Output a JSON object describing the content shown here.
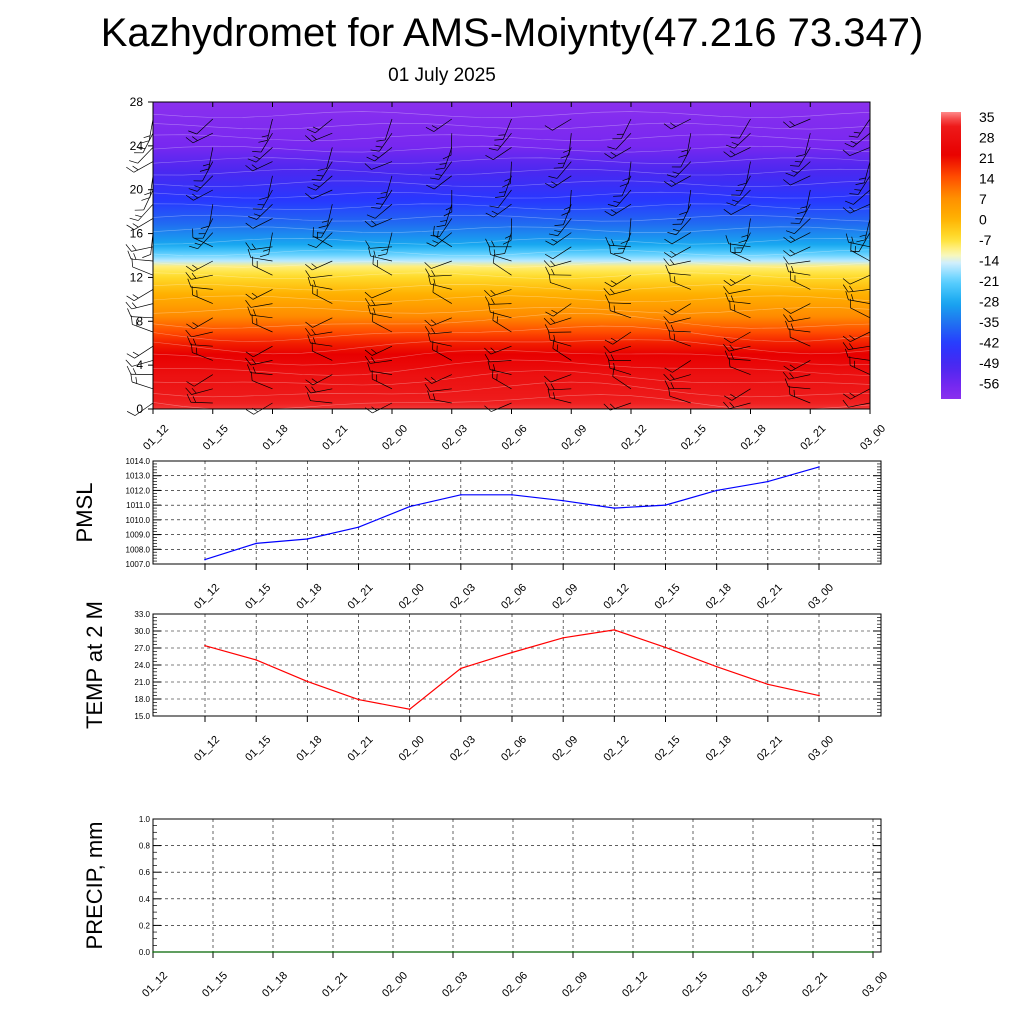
{
  "title": "Kazhydromet for AMS-Moiynty(47.216 73.347)",
  "subtitle": "01 July 2025",
  "chart_data": [
    {
      "type": "heatmap",
      "name": "vertical-profile",
      "x_labels": [
        "01_12",
        "01_15",
        "01_18",
        "01_21",
        "02_00",
        "02_03",
        "02_06",
        "02_09",
        "02_12",
        "02_15",
        "02_18",
        "02_21",
        "03_00"
      ],
      "y_ticks": [
        0,
        4,
        8,
        12,
        16,
        20,
        24,
        28
      ],
      "ylim": [
        0,
        28
      ],
      "profile": [
        {
          "level": 0,
          "value": 32
        },
        {
          "level": 3,
          "value": 27
        },
        {
          "level": 6,
          "value": 18
        },
        {
          "level": 8.5,
          "value": 7
        },
        {
          "level": 11,
          "value": -2
        },
        {
          "level": 13,
          "value": -10
        },
        {
          "level": 13.5,
          "value": -16
        },
        {
          "level": 15,
          "value": -28
        },
        {
          "level": 17,
          "value": -36
        },
        {
          "level": 19,
          "value": -42
        },
        {
          "level": 22,
          "value": -50
        },
        {
          "level": 24,
          "value": -56
        },
        {
          "level": 28,
          "value": -60
        }
      ],
      "colorbar": {
        "labels": [
          "35",
          "28",
          "21",
          "14",
          "7",
          "0",
          "-7",
          "-14",
          "-21",
          "-28",
          "-35",
          "-42",
          "-49",
          "-56"
        ],
        "stops": [
          {
            "value": 35,
            "color": "#ff8a8a"
          },
          {
            "value": 31,
            "color": "#ee1c1c"
          },
          {
            "value": 21,
            "color": "#e80000"
          },
          {
            "value": 14,
            "color": "#ff4800"
          },
          {
            "value": 7,
            "color": "#ff8c00"
          },
          {
            "value": 0,
            "color": "#ffb000"
          },
          {
            "value": -7,
            "color": "#ffe030"
          },
          {
            "value": -12,
            "color": "#fff8b0"
          },
          {
            "value": -15,
            "color": "#cfefff"
          },
          {
            "value": -21,
            "color": "#5cd0ff"
          },
          {
            "value": -28,
            "color": "#18a8f0"
          },
          {
            "value": -35,
            "color": "#2070f0"
          },
          {
            "value": -42,
            "color": "#2838ff"
          },
          {
            "value": -49,
            "color": "#4a28f0"
          },
          {
            "value": -56,
            "color": "#7828f0"
          },
          {
            "value": -60,
            "color": "#8a30ee"
          }
        ]
      }
    },
    {
      "type": "line",
      "name": "pmsl",
      "ylabel": "PMSL",
      "categories": [
        "01_12",
        "01_15",
        "01_18",
        "01_21",
        "02_00",
        "02_03",
        "02_06",
        "02_09",
        "02_12",
        "02_15",
        "02_18",
        "02_21",
        "03_00"
      ],
      "ylim": [
        1007.0,
        1014.0
      ],
      "y_ticks": [
        "1007.0",
        "1008.0",
        "1009.0",
        "1010.0",
        "1011.0",
        "1012.0",
        "1013.0",
        "1014.0"
      ],
      "color": "#0000ff",
      "values": [
        1007.3,
        1008.4,
        1008.7,
        1009.5,
        1010.9,
        1011.7,
        1011.7,
        1011.3,
        1010.8,
        1011.0,
        1012.0,
        1012.6,
        1013.6
      ]
    },
    {
      "type": "line",
      "name": "temp-2m",
      "ylabel": "TEMP at 2 M",
      "categories": [
        "01_12",
        "01_15",
        "01_18",
        "01_21",
        "02_00",
        "02_03",
        "02_06",
        "02_09",
        "02_12",
        "02_15",
        "02_18",
        "02_21",
        "03_00"
      ],
      "ylim": [
        15.0,
        33.0
      ],
      "y_ticks": [
        "15.0",
        "18.0",
        "21.0",
        "24.0",
        "27.0",
        "30.0",
        "33.0"
      ],
      "color": "#ff0000",
      "values": [
        27.4,
        24.9,
        21.1,
        17.9,
        16.2,
        23.4,
        26.2,
        28.8,
        30.2,
        27.1,
        23.7,
        20.6,
        18.6
      ]
    },
    {
      "type": "line",
      "name": "precip",
      "ylabel": "PRECIP, mm",
      "categories": [
        "01_12",
        "01_15",
        "01_18",
        "01_21",
        "02_00",
        "02_03",
        "02_06",
        "02_09",
        "02_12",
        "02_15",
        "02_18",
        "02_21",
        "03_00"
      ],
      "ylim": [
        0.0,
        1.0
      ],
      "y_ticks": [
        "0.0",
        "0.2",
        "0.4",
        "0.6",
        "0.8",
        "1.0"
      ],
      "color": "#006400",
      "values": [
        0,
        0,
        0,
        0,
        0,
        0,
        0,
        0,
        0,
        0,
        0,
        0,
        0
      ]
    }
  ]
}
